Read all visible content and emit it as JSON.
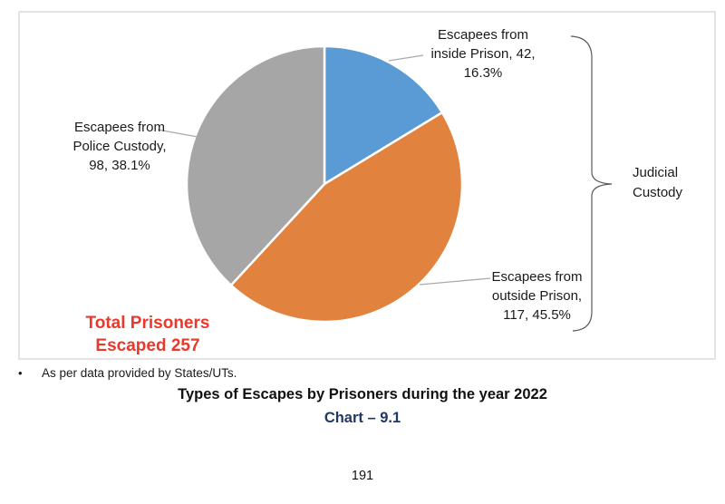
{
  "chart_data": {
    "type": "pie",
    "title": "Types of Escapes by Prisoners during the year 2022",
    "total": 257,
    "total_label": "Total Prisoners Escaped 257",
    "start_angle": "top",
    "direction": "clockwise",
    "legend": "none",
    "data_labels": "outside-with-leader-lines",
    "slices": [
      {
        "name": "Escapees from inside Prison",
        "value": 42,
        "percent": 16.3,
        "color": "#5b9bd5",
        "group": "Judicial Custody"
      },
      {
        "name": "Escapees from outside Prison",
        "value": 117,
        "percent": 45.5,
        "color": "#e2823f",
        "group": "Judicial Custody"
      },
      {
        "name": "Escapees from Police Custody",
        "value": 98,
        "percent": 38.1,
        "color": "#a6a6a6",
        "group": "Police Custody"
      }
    ],
    "annotations": [
      {
        "text": "Judicial Custody",
        "shape": "right-brace",
        "covers": [
          "Escapees from inside Prison",
          "Escapees from outside Prison"
        ]
      }
    ]
  },
  "labels": {
    "inside": {
      "line1": "Escapees from",
      "line2": "inside Prison, 42,",
      "line3": "16.3%"
    },
    "police": {
      "line1": "Escapees from",
      "line2": "Police Custody,",
      "line3": "98, 38.1%"
    },
    "outside": {
      "line1": "Escapees from",
      "line2": "outside Prison,",
      "line3": "117, 45.5%"
    },
    "judicial": {
      "line1": "Judicial",
      "line2": "Custody"
    },
    "total": {
      "line1": "Total Prisoners",
      "line2": "Escaped 257"
    }
  },
  "footnote": {
    "bullet": "•",
    "text": "As per data provided by States/UTs."
  },
  "caption": {
    "title": "Types of Escapes by Prisoners during the year 2022",
    "chart_number": "Chart – 9.1"
  },
  "page_number": "191",
  "colors": {
    "slice_blue": "#5b9bd5",
    "slice_orange": "#e2823f",
    "slice_gray": "#a6a6a6",
    "total_red": "#e8392b",
    "chart_number_navy": "#1f3864",
    "box_border": "#e3e3e3",
    "leader_line": "#a9a9a9",
    "brace": "#595959"
  }
}
